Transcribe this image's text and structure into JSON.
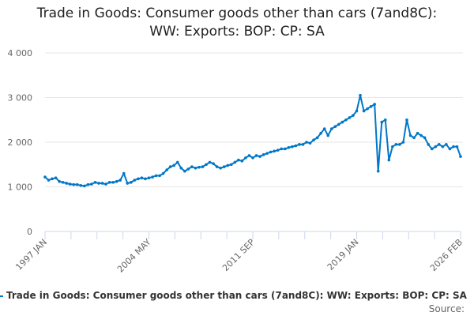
{
  "chart_data": {
    "type": "line",
    "title_line1": "Trade in Goods: Consumer goods other than cars (7and8C):",
    "title_line2": "WW: Exports: BOP: CP: SA",
    "x_start": "1997 JAN",
    "x_end": "2026 FEB",
    "step_months": 3,
    "x_tick_labels": [
      "1997 JAN",
      "2004 MAY",
      "2011 SEP",
      "2019 JAN",
      "2026 FEB"
    ],
    "y_tick_labels": [
      "0",
      "1 000",
      "2 000",
      "3 000",
      "4 000"
    ],
    "ylim": [
      0,
      4000
    ],
    "grid": true,
    "legend_position": "bottom",
    "series": [
      {
        "name": "Trade in Goods: Consumer goods other than cars (7and8C): WW: Exports: BOP: CP: SA",
        "color": "#0077c8",
        "values": [
          1220,
          1150,
          1180,
          1200,
          1120,
          1100,
          1080,
          1060,
          1050,
          1050,
          1030,
          1020,
          1050,
          1060,
          1100,
          1080,
          1080,
          1060,
          1100,
          1100,
          1120,
          1150,
          1300,
          1080,
          1100,
          1150,
          1180,
          1200,
          1180,
          1200,
          1220,
          1250,
          1250,
          1300,
          1380,
          1450,
          1480,
          1550,
          1420,
          1350,
          1400,
          1450,
          1420,
          1440,
          1450,
          1500,
          1550,
          1520,
          1450,
          1420,
          1450,
          1480,
          1500,
          1550,
          1600,
          1580,
          1650,
          1700,
          1650,
          1700,
          1680,
          1720,
          1750,
          1780,
          1800,
          1820,
          1850,
          1850,
          1880,
          1900,
          1920,
          1950,
          1950,
          2000,
          1980,
          2050,
          2100,
          2200,
          2300,
          2150,
          2300,
          2350,
          2400,
          2450,
          2500,
          2550,
          2600,
          2700,
          3050,
          2700,
          2750,
          2800,
          2850,
          1350,
          2450,
          2500,
          1600,
          1900,
          1950,
          1950,
          2000,
          2500,
          2150,
          2100,
          2200,
          2150,
          2100,
          1950,
          1850,
          1900,
          1950,
          1900,
          1950,
          1850,
          1900,
          1900,
          1680
        ]
      }
    ]
  },
  "legend_label": "Trade in Goods: Consumer goods other than cars (7and8C): WW: Exports: BOP: CP: SA",
  "source_label": "Source:"
}
